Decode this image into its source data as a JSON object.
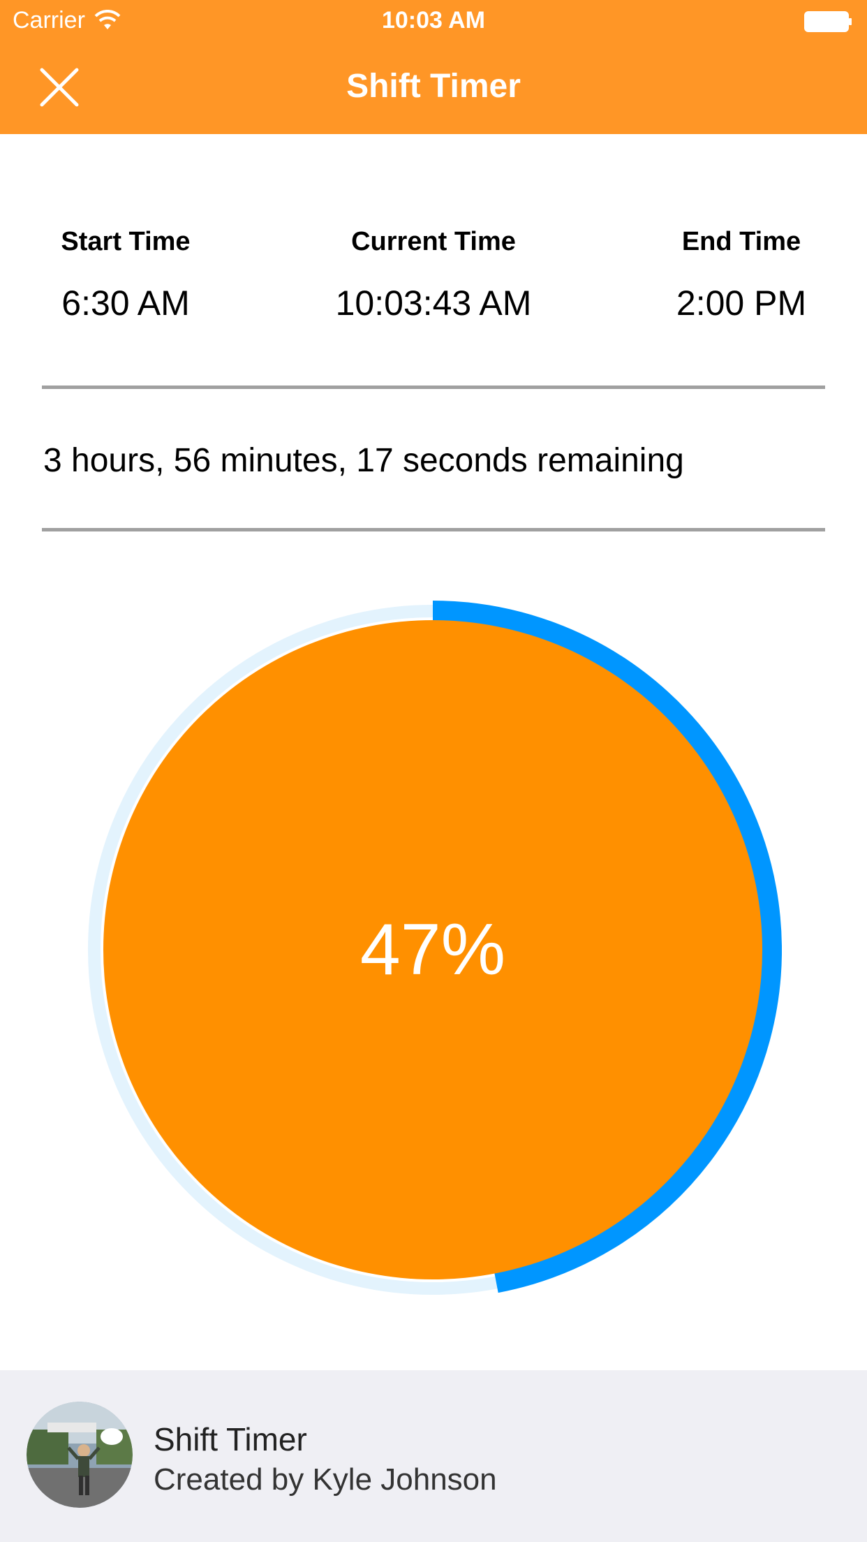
{
  "status_bar": {
    "carrier": "Carrier",
    "time": "10:03 AM",
    "wifi_icon": "wifi-icon",
    "battery_icon": "battery-icon"
  },
  "header": {
    "title": "Shift Timer",
    "close_icon": "close-icon",
    "color": "#FF9626"
  },
  "times": {
    "start_label": "Start Time",
    "start_value": "6:30 AM",
    "current_label": "Current Time",
    "current_value": "10:03:43 AM",
    "end_label": "End Time",
    "end_value": "2:00 PM"
  },
  "remaining": "3 hours, 56 minutes, 17 seconds remaining",
  "progress": {
    "percent_label": "47%",
    "fraction": 0.47,
    "fill_color": "#FF9000",
    "ring_color": "#0096FF",
    "track_color": "#E3F3FD"
  },
  "footer": {
    "title": "Shift Timer",
    "subtitle": "Created by Kyle Johnson",
    "avatar": "avatar-photo"
  }
}
